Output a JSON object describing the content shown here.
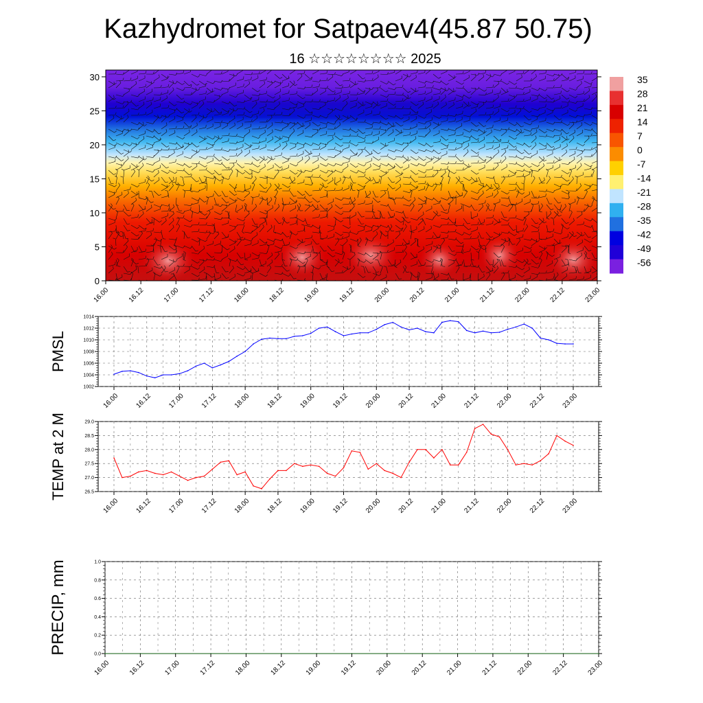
{
  "header": {
    "title": "Kazhydromet for Satpaev4(45.87 50.75)",
    "subtitle": "16 ☆☆☆☆☆☆☆☆ 2025"
  },
  "colors": {
    "pmsl_line": "#0000ff",
    "temp_line": "#ff0000",
    "precip_line": "#0a5a0a",
    "grid": "#666666"
  },
  "chart_data": [
    {
      "type": "heatmap",
      "name": "cross-section",
      "description_of_encoding": "filled contours with wind barbs",
      "y_ticks": [
        0,
        5,
        10,
        15,
        20,
        25,
        30
      ],
      "ylim": [
        0,
        31
      ],
      "x_ticks": [
        "16.00",
        "16.12",
        "17.00",
        "17.12",
        "18.00",
        "18.12",
        "19.00",
        "19.12",
        "20.00",
        "20.12",
        "21.00",
        "21.12",
        "22.00",
        "22.12",
        "23.00"
      ],
      "colorbar": {
        "labels": [
          "35",
          "28",
          "21",
          "14",
          "7",
          "0",
          "-7",
          "-14",
          "-21",
          "-28",
          "-35",
          "-42",
          "-49",
          "-56"
        ],
        "colors": [
          "#f0a0a0",
          "#e83030",
          "#d80000",
          "#ee2200",
          "#f85500",
          "#fb8c00",
          "#ffd000",
          "#fff070",
          "#c0e4ff",
          "#30b0f0",
          "#2070e0",
          "#0000e0",
          "#2000d8",
          "#7a20e0"
        ]
      }
    },
    {
      "type": "line",
      "name": "pmsl",
      "ylabel": "PMSL",
      "ylim": [
        1002,
        1014
      ],
      "y_ticks": [
        "1002",
        "1004",
        "1006",
        "1008",
        "1010",
        "1012",
        "1014"
      ],
      "x_ticks": [
        "16.00",
        "16.12",
        "17.00",
        "17.12",
        "18.00",
        "18.12",
        "19.00",
        "19.12",
        "20.00",
        "20.12",
        "21.00",
        "21.12",
        "22.00",
        "22.12",
        "23.00"
      ],
      "x": [
        0,
        3,
        6,
        9,
        12,
        15,
        18,
        21,
        24,
        27,
        30,
        33,
        36,
        39,
        42,
        45,
        48,
        51,
        54,
        57,
        60,
        63,
        66,
        69,
        72,
        75,
        78,
        81,
        84,
        87,
        90,
        93,
        96,
        99,
        102,
        105,
        108,
        111,
        114,
        117,
        120,
        123,
        126,
        129,
        132,
        135,
        138,
        141,
        144,
        147,
        150,
        153,
        156,
        159,
        162,
        165,
        168
      ],
      "values": [
        1004.1,
        1004.6,
        1004.7,
        1004.4,
        1003.8,
        1003.5,
        1004.0,
        1004.0,
        1004.2,
        1004.7,
        1005.5,
        1006.0,
        1005.2,
        1005.7,
        1006.3,
        1007.2,
        1008.0,
        1009.3,
        1010.1,
        1010.3,
        1010.2,
        1010.2,
        1010.6,
        1010.7,
        1011.1,
        1012.0,
        1012.2,
        1011.4,
        1010.7,
        1011.0,
        1011.2,
        1011.2,
        1011.8,
        1012.6,
        1013.0,
        1012.2,
        1011.7,
        1012.0,
        1011.4,
        1011.2,
        1013.0,
        1013.3,
        1013.1,
        1011.6,
        1011.2,
        1011.5,
        1011.2,
        1011.3,
        1011.8,
        1012.2,
        1012.7,
        1012.0,
        1010.3,
        1010.0,
        1009.4,
        1009.3,
        1009.3
      ]
    },
    {
      "type": "line",
      "name": "temp",
      "ylabel": "TEMP at 2 M",
      "ylim": [
        26.5,
        29.0
      ],
      "y_ticks": [
        "26.5",
        "27.0",
        "27.5",
        "28.0",
        "28.5",
        "29.0"
      ],
      "x_ticks": [
        "16.00",
        "16.12",
        "17.00",
        "17.12",
        "18.00",
        "18.12",
        "19.00",
        "19.12",
        "20.00",
        "20.12",
        "21.00",
        "21.12",
        "22.00",
        "22.12",
        "23.00"
      ],
      "x": [
        0,
        3,
        6,
        9,
        12,
        15,
        18,
        21,
        24,
        27,
        30,
        33,
        36,
        39,
        42,
        45,
        48,
        51,
        54,
        57,
        60,
        63,
        66,
        69,
        72,
        75,
        78,
        81,
        84,
        87,
        90,
        93,
        96,
        99,
        102,
        105,
        108,
        111,
        114,
        117,
        120,
        123,
        126,
        129,
        132,
        135,
        138,
        141,
        144,
        147,
        150,
        153,
        156,
        159,
        162,
        165,
        168
      ],
      "values": [
        27.7,
        27.0,
        27.05,
        27.2,
        27.25,
        27.15,
        27.1,
        27.2,
        27.05,
        26.9,
        27.0,
        27.05,
        27.3,
        27.55,
        27.6,
        27.1,
        27.2,
        26.7,
        26.6,
        26.95,
        27.25,
        27.25,
        27.5,
        27.4,
        27.45,
        27.4,
        27.15,
        27.05,
        27.35,
        27.95,
        27.9,
        27.3,
        27.5,
        27.25,
        27.15,
        27.0,
        27.55,
        28.0,
        28.0,
        27.7,
        28.0,
        27.45,
        27.45,
        27.9,
        28.75,
        28.9,
        28.55,
        28.45,
        28.0,
        27.45,
        27.5,
        27.45,
        27.6,
        27.85,
        28.5,
        28.3,
        28.15
      ]
    },
    {
      "type": "line",
      "name": "precip",
      "ylabel": "PRECIP, mm",
      "ylim": [
        0,
        1.0
      ],
      "y_ticks": [
        "0.0",
        "0.2",
        "0.4",
        "0.6",
        "0.8",
        "1.0"
      ],
      "x_ticks": [
        "16.00",
        "16.12",
        "17.00",
        "17.12",
        "18.00",
        "18.12",
        "19.00",
        "19.12",
        "20.00",
        "20.12",
        "21.00",
        "21.12",
        "22.00",
        "22.12",
        "23.00"
      ],
      "x": [
        0,
        168
      ],
      "values": [
        0,
        0
      ]
    }
  ]
}
